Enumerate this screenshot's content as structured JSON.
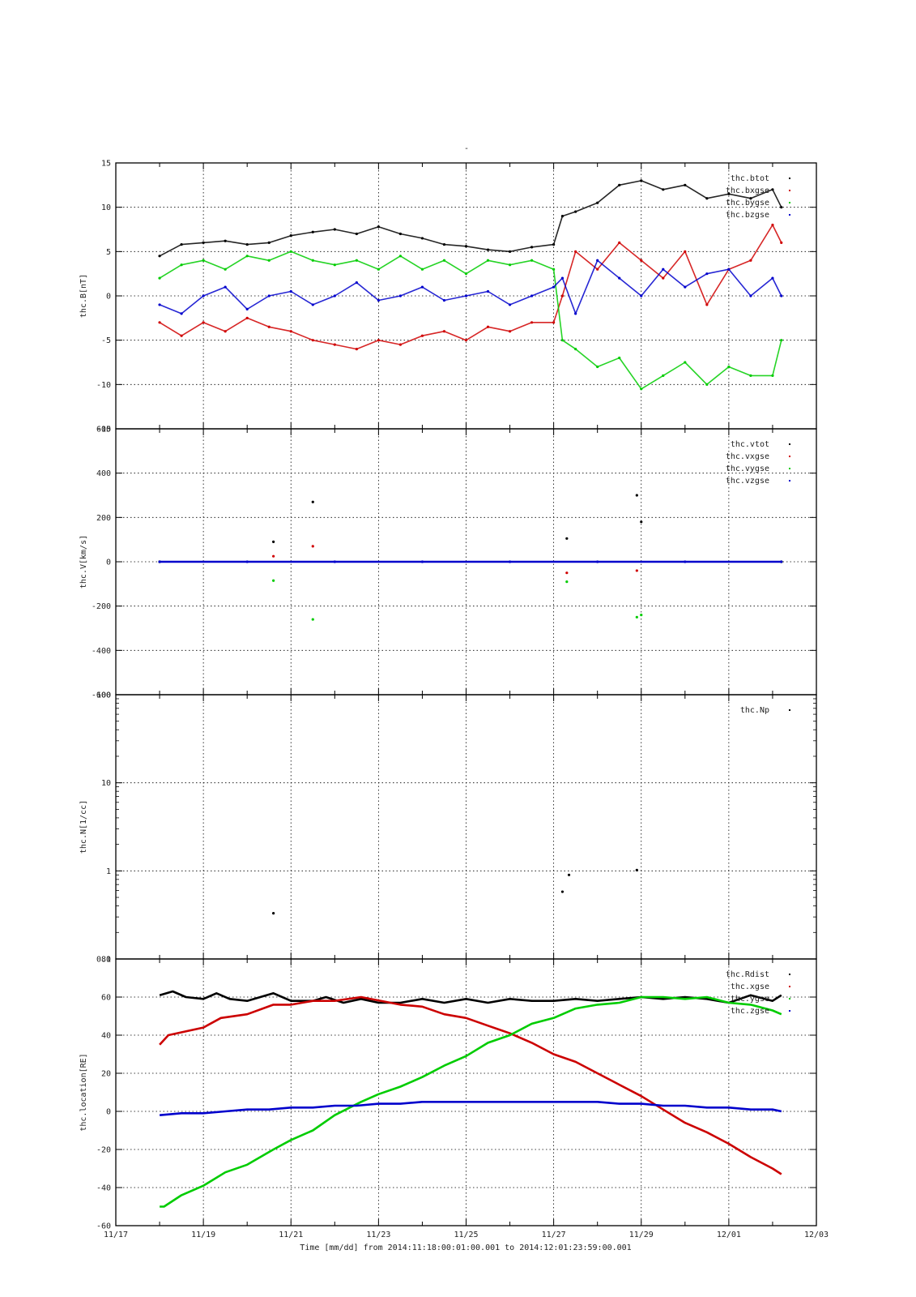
{
  "title": "-",
  "x_title": "Time [mm/dd]  from 2014:11:18:00:01:00.001  to  2014:12:01:23:59:00.001",
  "x_tick_labels": [
    "11/17",
    "11/19",
    "11/21",
    "11/23",
    "11/25",
    "11/27",
    "11/29",
    "12/01",
    "12/03"
  ],
  "chart_data": [
    {
      "type": "scatter",
      "ylabel": "thc.B[nT]",
      "xlim": [
        "11/17",
        "12/03"
      ],
      "ylim": [
        -15,
        15
      ],
      "yticks": [
        15,
        10,
        5,
        0,
        -5,
        -10,
        -15
      ],
      "grid": true,
      "legend_position": "top-right",
      "series": [
        {
          "name": "thc.btot",
          "color": "#000000",
          "x": [
            18.0,
            18.5,
            19.0,
            19.5,
            20.0,
            20.5,
            21.0,
            21.5,
            22.0,
            22.5,
            23.0,
            23.5,
            24.0,
            24.5,
            25.0,
            25.5,
            26.0,
            26.5,
            27.0,
            27.2,
            27.5,
            28.0,
            28.5,
            29.0,
            29.5,
            30.0,
            30.5,
            31.0,
            31.5,
            32.0,
            32.2
          ],
          "y": [
            4.5,
            5.8,
            6.0,
            6.2,
            5.8,
            6.0,
            6.8,
            7.2,
            7.5,
            7.0,
            7.8,
            7.0,
            6.5,
            5.8,
            5.6,
            5.2,
            5.0,
            5.5,
            5.8,
            9.0,
            9.5,
            10.5,
            12.5,
            13.0,
            12.0,
            12.5,
            11.0,
            11.5,
            11.0,
            12.0,
            10.0
          ]
        },
        {
          "name": "thc.bxgse",
          "color": "#d00000",
          "x": [
            18.0,
            18.5,
            19.0,
            19.5,
            20.0,
            20.5,
            21.0,
            21.5,
            22.0,
            22.5,
            23.0,
            23.5,
            24.0,
            24.5,
            25.0,
            25.5,
            26.0,
            26.5,
            27.0,
            27.2,
            27.5,
            28.0,
            28.5,
            29.0,
            29.5,
            30.0,
            30.5,
            31.0,
            31.5,
            32.0,
            32.2
          ],
          "y": [
            -3.0,
            -4.5,
            -3.0,
            -4.0,
            -2.5,
            -3.5,
            -4.0,
            -5.0,
            -5.5,
            -6.0,
            -5.0,
            -5.5,
            -4.5,
            -4.0,
            -5.0,
            -3.5,
            -4.0,
            -3.0,
            -3.0,
            0.0,
            5.0,
            3.0,
            6.0,
            4.0,
            2.0,
            5.0,
            -1.0,
            3.0,
            4.0,
            8.0,
            6.0
          ]
        },
        {
          "name": "thc.bygse",
          "color": "#00cc00",
          "x": [
            18.0,
            18.5,
            19.0,
            19.5,
            20.0,
            20.5,
            21.0,
            21.5,
            22.0,
            22.5,
            23.0,
            23.5,
            24.0,
            24.5,
            25.0,
            25.5,
            26.0,
            26.5,
            27.0,
            27.2,
            27.5,
            28.0,
            28.5,
            29.0,
            29.5,
            30.0,
            30.5,
            31.0,
            31.5,
            32.0,
            32.2
          ],
          "y": [
            2.0,
            3.5,
            4.0,
            3.0,
            4.5,
            4.0,
            5.0,
            4.0,
            3.5,
            4.0,
            3.0,
            4.5,
            3.0,
            4.0,
            2.5,
            4.0,
            3.5,
            4.0,
            3.0,
            -5.0,
            -6.0,
            -8.0,
            -7.0,
            -10.5,
            -9.0,
            -7.5,
            -10.0,
            -8.0,
            -9.0,
            -9.0,
            -5.0
          ]
        },
        {
          "name": "thc.bzgse",
          "color": "#0000cc",
          "x": [
            18.0,
            18.5,
            19.0,
            19.5,
            20.0,
            20.5,
            21.0,
            21.5,
            22.0,
            22.5,
            23.0,
            23.5,
            24.0,
            24.5,
            25.0,
            25.5,
            26.0,
            26.5,
            27.0,
            27.2,
            27.5,
            28.0,
            28.5,
            29.0,
            29.5,
            30.0,
            30.5,
            31.0,
            31.5,
            32.0,
            32.2
          ],
          "y": [
            -1.0,
            -2.0,
            0.0,
            1.0,
            -1.5,
            0.0,
            0.5,
            -1.0,
            0.0,
            1.5,
            -0.5,
            0.0,
            1.0,
            -0.5,
            0.0,
            0.5,
            -1.0,
            0.0,
            1.0,
            2.0,
            -2.0,
            4.0,
            2.0,
            0.0,
            3.0,
            1.0,
            2.5,
            3.0,
            0.0,
            2.0,
            0.0
          ]
        }
      ]
    },
    {
      "type": "scatter",
      "ylabel": "thc.V[km/s]",
      "xlim": [
        "11/17",
        "12/03"
      ],
      "ylim": [
        -600,
        600
      ],
      "yticks": [
        600,
        400,
        200,
        0,
        -200,
        -400,
        -600
      ],
      "grid": true,
      "legend_position": "top-right",
      "series": [
        {
          "name": "thc.vtot",
          "color": "#000000",
          "x": [
            18.0,
            20.6,
            21.5,
            27.3,
            28.9,
            29.0,
            32.2
          ],
          "y": [
            0,
            90,
            270,
            105,
            300,
            180,
            0
          ]
        },
        {
          "name": "thc.vxgse",
          "color": "#d00000",
          "x": [
            18.0,
            20.6,
            21.5,
            27.3,
            28.9,
            32.2
          ],
          "y": [
            0,
            25,
            70,
            -50,
            -40,
            0
          ]
        },
        {
          "name": "thc.vygse",
          "color": "#00cc00",
          "x": [
            18.0,
            20.6,
            21.5,
            27.3,
            28.9,
            29.0,
            32.2
          ],
          "y": [
            0,
            -85,
            -260,
            -90,
            -250,
            -240,
            0
          ]
        },
        {
          "name": "thc.vzgse",
          "color": "#0000cc",
          "x": [
            18.0,
            20.0,
            22.0,
            24.0,
            26.0,
            28.0,
            30.0,
            32.2
          ],
          "y": [
            0,
            0,
            0,
            0,
            0,
            0,
            0,
            0
          ]
        }
      ]
    },
    {
      "type": "scatter",
      "ylabel": "thc.N[1/cc]",
      "xlim": [
        "11/17",
        "12/03"
      ],
      "ylim": [
        0.1,
        100
      ],
      "yscale": "log",
      "yticks": [
        100,
        10,
        1,
        0.1
      ],
      "ytick_labels": [
        "100",
        "10",
        "1",
        "0.1"
      ],
      "grid": true,
      "legend_position": "top-right",
      "series": [
        {
          "name": "thc.Np",
          "color": "#000000",
          "x": [
            20.6,
            27.2,
            27.35,
            28.9
          ],
          "y": [
            0.33,
            0.58,
            0.9,
            1.02
          ]
        }
      ]
    },
    {
      "type": "line",
      "ylabel": "thc.location[RE]",
      "xlim": [
        "11/17",
        "12/03"
      ],
      "ylim": [
        -60,
        80
      ],
      "yticks": [
        80,
        60,
        40,
        20,
        0,
        -20,
        -40,
        -60
      ],
      "grid": true,
      "legend_position": "top-right",
      "series": [
        {
          "name": "thc.Rdist",
          "color": "#000000",
          "x": [
            18.0,
            18.3,
            18.6,
            19.0,
            19.3,
            19.6,
            20.0,
            20.6,
            21.0,
            21.5,
            21.8,
            22.2,
            22.6,
            23.0,
            23.5,
            24.0,
            24.5,
            25.0,
            25.5,
            26.0,
            26.5,
            27.0,
            27.5,
            28.0,
            28.5,
            29.0,
            29.5,
            30.0,
            30.5,
            31.0,
            31.5,
            32.0,
            32.2
          ],
          "y": [
            61,
            63,
            60,
            59,
            62,
            59,
            58,
            62,
            58,
            58,
            60,
            57,
            59,
            57,
            57,
            59,
            57,
            59,
            57,
            59,
            58,
            58,
            59,
            58,
            59,
            60,
            59,
            60,
            59,
            57,
            61,
            58,
            61
          ]
        },
        {
          "name": "thc.xgse",
          "color": "#cc0000",
          "x": [
            18.0,
            18.2,
            19.0,
            19.4,
            20.0,
            20.6,
            21.0,
            21.5,
            22.0,
            22.6,
            23.5,
            24.0,
            24.5,
            25.0,
            25.5,
            26.0,
            26.5,
            27.0,
            27.5,
            28.0,
            28.5,
            29.0,
            29.5,
            30.0,
            30.5,
            31.0,
            31.5,
            32.0,
            32.2
          ],
          "y": [
            35,
            40,
            44,
            49,
            51,
            56,
            56,
            58,
            58,
            60,
            56,
            55,
            51,
            49,
            45,
            41,
            36,
            30,
            26,
            20,
            14,
            8,
            1,
            -6,
            -11,
            -17,
            -24,
            -30,
            -33
          ]
        },
        {
          "name": "thc.ygse",
          "color": "#00cc00",
          "x": [
            18.0,
            18.1,
            18.5,
            19.0,
            19.5,
            20.0,
            20.6,
            21.0,
            21.5,
            22.0,
            22.6,
            23.0,
            23.5,
            24.0,
            24.5,
            25.0,
            25.5,
            26.0,
            26.5,
            27.0,
            27.5,
            28.0,
            28.5,
            29.0,
            29.5,
            30.0,
            30.5,
            31.0,
            31.5,
            32.0,
            32.2
          ],
          "y": [
            -50,
            -50,
            -44,
            -39,
            -32,
            -28,
            -20,
            -15,
            -10,
            -2,
            5,
            9,
            13,
            18,
            24,
            29,
            36,
            40,
            46,
            49,
            54,
            56,
            57,
            60,
            60,
            59,
            60,
            57,
            56,
            53,
            51
          ]
        },
        {
          "name": "thc.zgse",
          "color": "#0000cc",
          "x": [
            18.0,
            18.5,
            19.0,
            19.5,
            20.0,
            20.5,
            21.0,
            21.5,
            22.0,
            22.5,
            23.0,
            23.5,
            24.0,
            24.5,
            25.0,
            25.5,
            26.0,
            26.5,
            27.0,
            27.5,
            28.0,
            28.5,
            29.0,
            29.5,
            30.0,
            30.5,
            31.0,
            31.5,
            32.0,
            32.2
          ],
          "y": [
            -2,
            -1,
            -1,
            0,
            1,
            1,
            2,
            2,
            3,
            3,
            4,
            4,
            5,
            5,
            5,
            5,
            5,
            5,
            5,
            5,
            5,
            4,
            4,
            3,
            3,
            2,
            2,
            1,
            1,
            0
          ]
        }
      ]
    }
  ]
}
